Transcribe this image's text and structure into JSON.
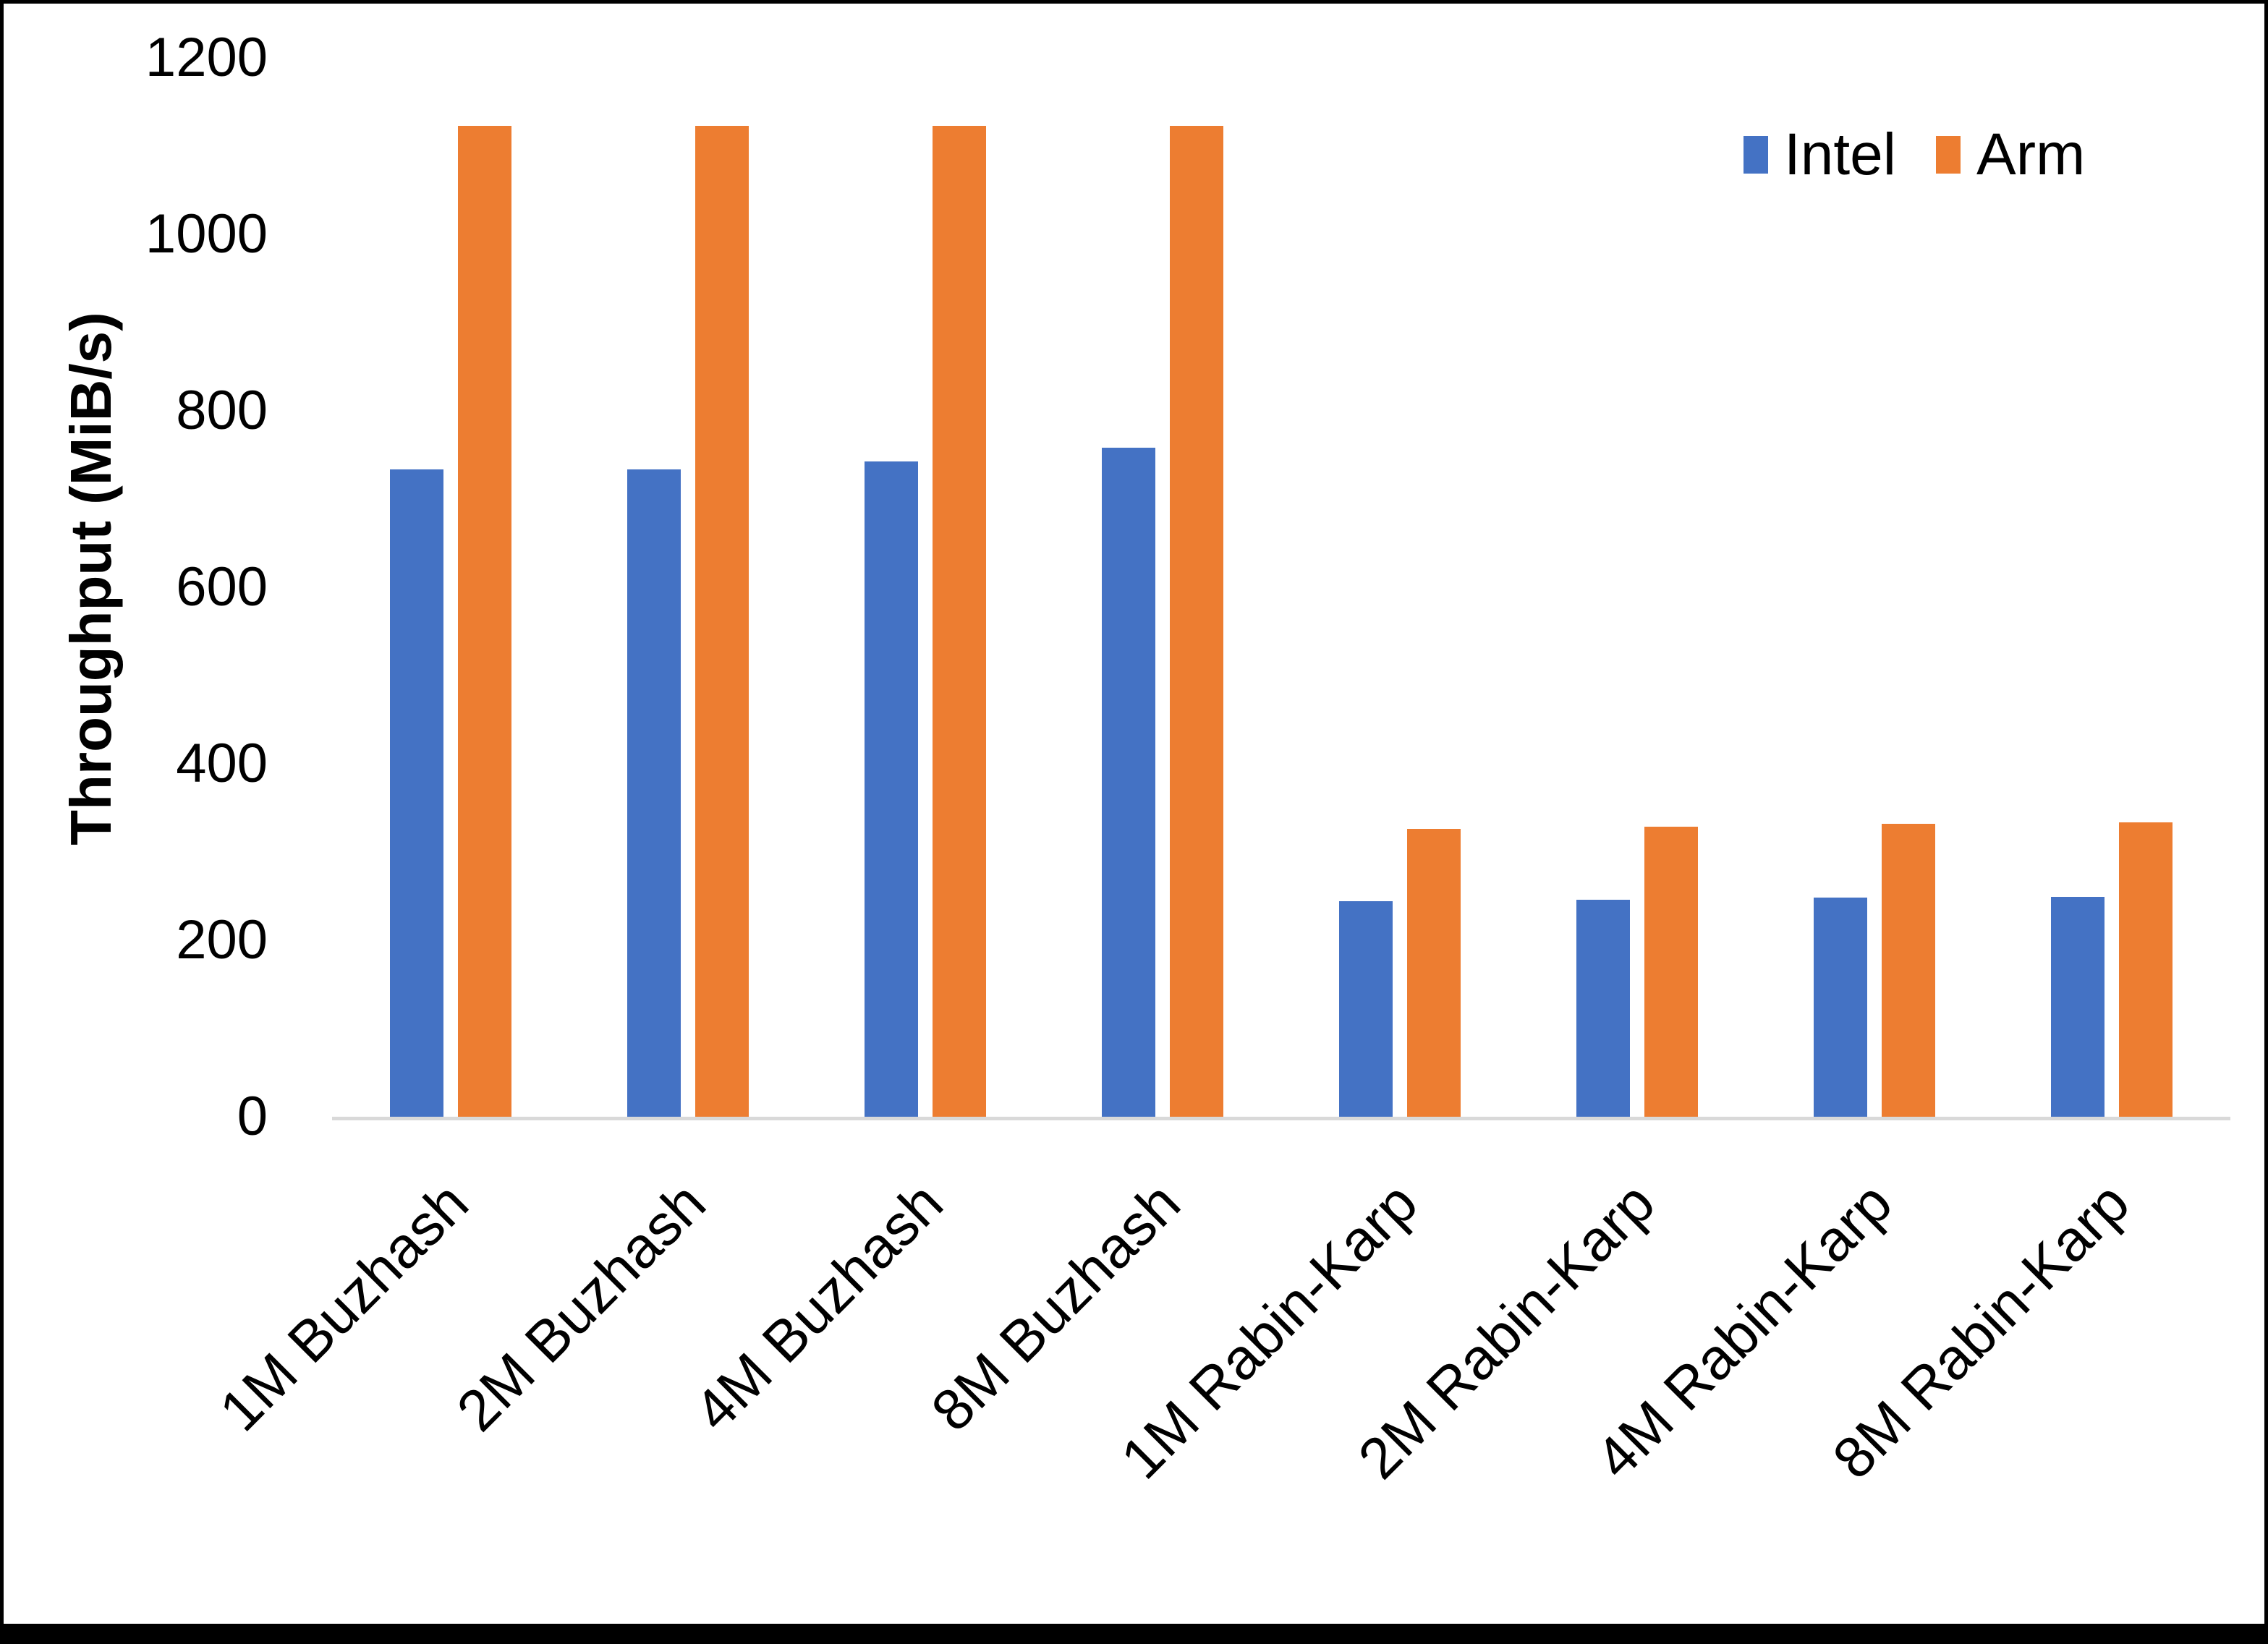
{
  "frame": {
    "border_color": "#000000",
    "background_color": "#FFFFFF"
  },
  "chart_data": {
    "type": "bar",
    "title": "",
    "xlabel": "",
    "ylabel": "Throughput (MiB/s)",
    "ylim": [
      0,
      1200
    ],
    "yticks": [
      0,
      200,
      400,
      600,
      800,
      1000,
      1200
    ],
    "grid": false,
    "legend_position": "top-right",
    "axis_line_color": "#D9D9D9",
    "text_color": "#000000",
    "categories": [
      "1M Buzhash",
      "2M Buzhash",
      "4M Buzhash",
      "8M Buzhash",
      "1M Rabin-Karp",
      "2M Rabin-Karp",
      "4M Rabin-Karp",
      "8M Rabin-Karp"
    ],
    "series": [
      {
        "name": "Intel",
        "color": "#4472C4",
        "values": [
          734,
          734,
          743,
          758,
          244,
          246,
          248,
          249
        ]
      },
      {
        "name": "Arm",
        "color": "#ED7D31",
        "values": [
          1123,
          1123,
          1123,
          1123,
          326,
          329,
          332,
          334
        ]
      }
    ]
  }
}
